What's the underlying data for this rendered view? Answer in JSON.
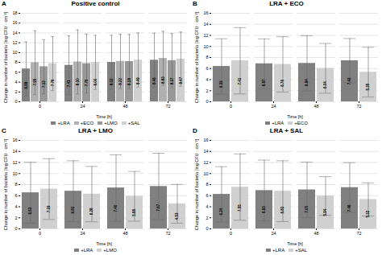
{
  "chart_data": [
    {
      "type": "bar",
      "title": "Positive control",
      "annotations": [
        "A"
      ],
      "xlabel": "Time [h]",
      "ylabel": "Change in number of bacteria [log CFU · cm⁻²]",
      "categories": [
        "0",
        "24",
        "48",
        "72"
      ],
      "series": [
        {
          "name": "+LRA",
          "color": "#808080",
          "values": [
            6.68,
            7.41,
            8.02,
            8.46
          ],
          "value_labels": [
            "6.68",
            "7.41",
            "8.02",
            "8.46"
          ],
          "errors": [
            5.5,
            6.0,
            5.5,
            5.5
          ]
        },
        {
          "name": "+ECO",
          "color": "#b0b0b0",
          "values": [
            7.95,
            8.1,
            8.22,
            8.83
          ],
          "value_labels": [
            "7.95",
            "8.10",
            "8.22",
            "8.83"
          ],
          "errors": [
            6.5,
            6.5,
            5.5,
            5.5
          ]
        },
        {
          "name": "+LMO",
          "color": "#989898",
          "values": [
            7.13,
            7.76,
            8.18,
            8.37
          ],
          "value_labels": [
            "7.13",
            "7.76",
            "8.18",
            "8.37"
          ],
          "errors": [
            5.5,
            6.0,
            5.5,
            5.5
          ]
        },
        {
          "name": "+SAL",
          "color": "#d0d0d0",
          "values": [
            7.76,
            8.0,
            8.49,
            8.67
          ],
          "value_labels": [
            "7.76",
            "8.00",
            "8.49",
            "8.67"
          ],
          "errors": [
            5.5,
            5.5,
            5.5,
            5.5
          ]
        }
      ],
      "ylim": [
        0,
        18
      ],
      "yticks": [
        0,
        2,
        4,
        6,
        8,
        10,
        12,
        14,
        16,
        18
      ],
      "grid": true,
      "legend": "bottom",
      "data_labels": true
    },
    {
      "type": "bar",
      "title": "LRA + ECO",
      "annotations": [
        "B"
      ],
      "xlabel": "Time [h]",
      "ylabel": "Change in number of bacteria [log CFU · cm⁻²]",
      "categories": [
        "0",
        "24",
        "48",
        "72"
      ],
      "series": [
        {
          "name": "+LRA",
          "color": "#808080",
          "values": [
            6.39,
            6.87,
            6.94,
            7.43
          ],
          "value_labels": [
            "6.39",
            "6.87",
            "6.94",
            "7.43"
          ],
          "errors": [
            5.0,
            4.5,
            5.0,
            4.0
          ]
        },
        {
          "name": "+ECO",
          "color": "#d0d0d0",
          "values": [
            7.41,
            6.76,
            6.04,
            5.35
          ],
          "value_labels": [
            "7.41",
            "6.76",
            "6.04",
            "5.35"
          ],
          "errors": [
            6.0,
            5.0,
            4.5,
            4.5
          ]
        }
      ],
      "ylim": [
        0,
        16
      ],
      "yticks": [
        0,
        2,
        4,
        6,
        8,
        10,
        12,
        14,
        16
      ],
      "grid": true,
      "legend": "bottom",
      "data_labels": true
    },
    {
      "type": "bar",
      "title": "LRA + LMO",
      "annotations": [
        "C"
      ],
      "xlabel": "Time [h]",
      "ylabel": "Change in number of bacteria [log CFU · cm⁻²]",
      "categories": [
        "0",
        "24",
        "48",
        "72"
      ],
      "series": [
        {
          "name": "+LRA",
          "color": "#808080",
          "values": [
            6.53,
            6.81,
            7.4,
            7.67
          ],
          "value_labels": [
            "6.53",
            "6.81",
            "7.40",
            "7.67"
          ],
          "errors": [
            5.5,
            5.5,
            6.0,
            6.0
          ]
        },
        {
          "name": "+LMO",
          "color": "#d0d0d0",
          "values": [
            7.19,
            6.28,
            5.88,
            4.53
          ],
          "value_labels": [
            "7.19",
            "6.28",
            "5.88",
            "4.53"
          ],
          "errors": [
            5.5,
            5.0,
            4.5,
            3.5
          ]
        }
      ],
      "ylim": [
        0,
        16
      ],
      "yticks": [
        0,
        2,
        4,
        6,
        8,
        10,
        12,
        14,
        16
      ],
      "grid": true,
      "legend": "bottom",
      "data_labels": true
    },
    {
      "type": "bar",
      "title": "LRA + SAL",
      "annotations": [
        "D"
      ],
      "xlabel": "Time [h]",
      "ylabel": "Change in number of bacteria [log CFU · cm⁻²]",
      "categories": [
        "0",
        "24",
        "48",
        "72"
      ],
      "series": [
        {
          "name": "+LRA",
          "color": "#808080",
          "values": [
            6.24,
            6.93,
            7.05,
            7.46
          ],
          "value_labels": [
            "6.24",
            "6.93",
            "7.05",
            "7.46"
          ],
          "errors": [
            5.0,
            5.5,
            5.0,
            4.5
          ]
        },
        {
          "name": "+SAL",
          "color": "#d0d0d0",
          "values": [
            7.55,
            6.81,
            5.94,
            5.32
          ],
          "value_labels": [
            "7.55",
            "6.81",
            "5.94",
            "5.32"
          ],
          "errors": [
            6.0,
            5.5,
            3.5,
            3.0
          ]
        }
      ],
      "ylim": [
        0,
        16
      ],
      "yticks": [
        0,
        2,
        4,
        6,
        8,
        10,
        12,
        14,
        16
      ],
      "grid": true,
      "legend": "bottom",
      "data_labels": true
    }
  ]
}
